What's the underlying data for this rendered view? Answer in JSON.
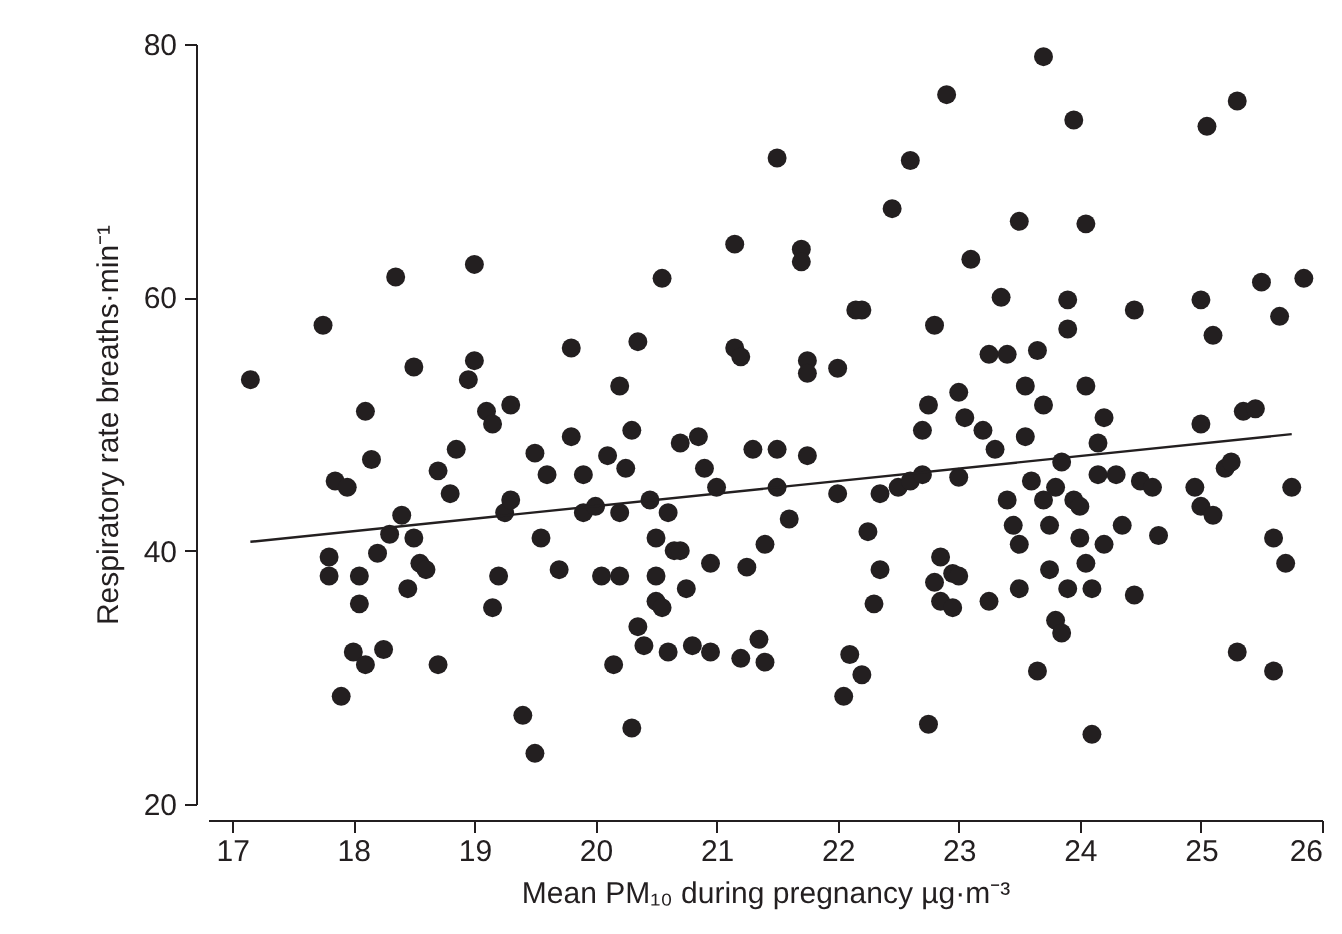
{
  "chart_data": {
    "type": "scatter",
    "xlabel": "Mean PM₁₀ during pregnancy µg·m⁻³",
    "ylabel": "Respiratory rate breaths·min⁻¹",
    "xlim": [
      16.8,
      26
    ],
    "xticks": [
      17,
      18,
      19,
      20,
      21,
      22,
      23,
      24,
      25,
      26
    ],
    "ylim": [
      20,
      80
    ],
    "yticks": [
      20,
      40,
      60,
      80
    ],
    "grid": false,
    "series": [
      {
        "color": "#231f20",
        "marker": "circle",
        "x": [
          17.15,
          17.75,
          17.8,
          17.8,
          17.85,
          17.95,
          17.9,
          18.0,
          18.05,
          18.05,
          18.1,
          18.15,
          18.1,
          18.2,
          18.25,
          18.3,
          18.35,
          18.4,
          18.45,
          18.5,
          18.5,
          18.55,
          18.6,
          18.7,
          18.7,
          18.8,
          18.85,
          18.95,
          19.0,
          19.0,
          19.1,
          19.15,
          19.15,
          19.2,
          19.25,
          19.3,
          19.3,
          19.4,
          19.5,
          19.5,
          19.55,
          19.6,
          19.7,
          19.8,
          19.8,
          19.9,
          19.9,
          20.0,
          20.05,
          20.1,
          20.15,
          20.2,
          20.2,
          20.2,
          20.25,
          20.3,
          20.3,
          20.35,
          20.35,
          20.4,
          20.45,
          20.5,
          20.5,
          20.5,
          20.55,
          20.55,
          20.6,
          20.6,
          20.65,
          20.7,
          20.7,
          20.75,
          20.8,
          20.85,
          20.9,
          20.95,
          20.95,
          21.0,
          21.15,
          21.15,
          21.2,
          21.2,
          21.25,
          21.3,
          21.35,
          21.4,
          21.4,
          21.5,
          21.5,
          21.5,
          21.6,
          21.7,
          21.7,
          21.75,
          21.75,
          21.75,
          22.0,
          22.0,
          22.05,
          22.1,
          22.15,
          22.2,
          22.2,
          22.25,
          22.3,
          22.35,
          22.35,
          22.45,
          22.5,
          22.6,
          22.6,
          22.7,
          22.7,
          22.75,
          22.75,
          22.8,
          22.8,
          22.85,
          22.85,
          22.9,
          22.95,
          22.95,
          23.0,
          23.0,
          23.0,
          23.05,
          23.1,
          23.2,
          23.25,
          23.25,
          23.3,
          23.35,
          23.4,
          23.4,
          23.45,
          23.5,
          23.5,
          23.5,
          23.55,
          23.55,
          23.6,
          23.65,
          23.65,
          23.7,
          23.7,
          23.7,
          23.75,
          23.75,
          23.8,
          23.8,
          23.85,
          23.85,
          23.9,
          23.9,
          23.9,
          23.95,
          23.95,
          24.0,
          24.0,
          24.05,
          24.05,
          24.05,
          24.1,
          24.1,
          24.15,
          24.15,
          24.2,
          24.2,
          24.3,
          24.35,
          24.45,
          24.45,
          24.5,
          24.6,
          24.65,
          24.95,
          25.0,
          25.0,
          25.0,
          25.05,
          25.1,
          25.1,
          25.2,
          25.25,
          25.3,
          25.3,
          25.35,
          25.45,
          25.5,
          25.6,
          25.6,
          25.65,
          25.7,
          25.75,
          25.85
        ],
        "values": [
          53.5,
          57.8,
          38,
          39.5,
          45.5,
          45,
          28.5,
          32,
          35.8,
          38,
          51,
          47.2,
          31,
          39.8,
          32.2,
          41.3,
          61.6,
          42.8,
          37,
          54.5,
          41,
          39,
          38.5,
          46.3,
          31,
          44.5,
          48,
          53.5,
          62.6,
          55,
          51,
          50,
          35.5,
          38,
          43,
          44,
          51.5,
          27,
          24,
          47.7,
          41,
          46,
          38.5,
          56,
          49,
          43,
          46,
          43.5,
          38,
          47.5,
          31,
          43,
          53,
          38,
          46.5,
          49.5,
          26,
          34,
          56.5,
          32.5,
          44,
          36,
          41,
          38,
          35.5,
          61.5,
          43,
          32,
          40,
          48.5,
          40,
          37,
          32.5,
          49,
          46.5,
          39,
          32,
          45,
          64.2,
          56,
          55.3,
          31.5,
          38.7,
          48,
          33,
          31.2,
          40.5,
          71,
          48,
          45,
          42.5,
          63.8,
          62.8,
          55,
          54,
          47.5,
          54.4,
          44.5,
          28.5,
          31.8,
          59,
          59,
          30.2,
          41.5,
          35.8,
          38.5,
          44.5,
          67,
          45,
          45.5,
          70.8,
          49.5,
          46,
          26.3,
          51.5,
          57.8,
          37.5,
          36,
          39.5,
          76,
          35.5,
          38.2,
          52.5,
          45.8,
          38,
          50.5,
          63,
          49.5,
          36,
          55.5,
          48,
          60,
          55.5,
          44,
          42,
          66,
          40.5,
          37,
          53,
          49,
          45.5,
          55.8,
          30.5,
          79,
          51.5,
          44,
          42,
          38.5,
          34.5,
          45,
          47,
          33.5,
          59.8,
          57.5,
          37,
          74,
          44,
          43.5,
          41,
          65.8,
          53,
          39,
          25.5,
          37,
          48.5,
          46,
          50.5,
          40.5,
          46,
          42,
          59,
          36.5,
          45.5,
          45,
          41.2,
          45,
          59.8,
          50,
          43.5,
          73.5,
          57,
          42.8,
          46.5,
          47,
          75.5,
          32,
          51,
          51.2,
          61.2,
          30.5,
          41,
          58.5,
          39,
          45,
          61.5
        ]
      },
      {
        "type": "line",
        "color": "#231f20",
        "line_style": "solid",
        "marker": "none",
        "x": [
          17.15,
          25.75
        ],
        "values": [
          40.7,
          49.2
        ]
      }
    ]
  }
}
